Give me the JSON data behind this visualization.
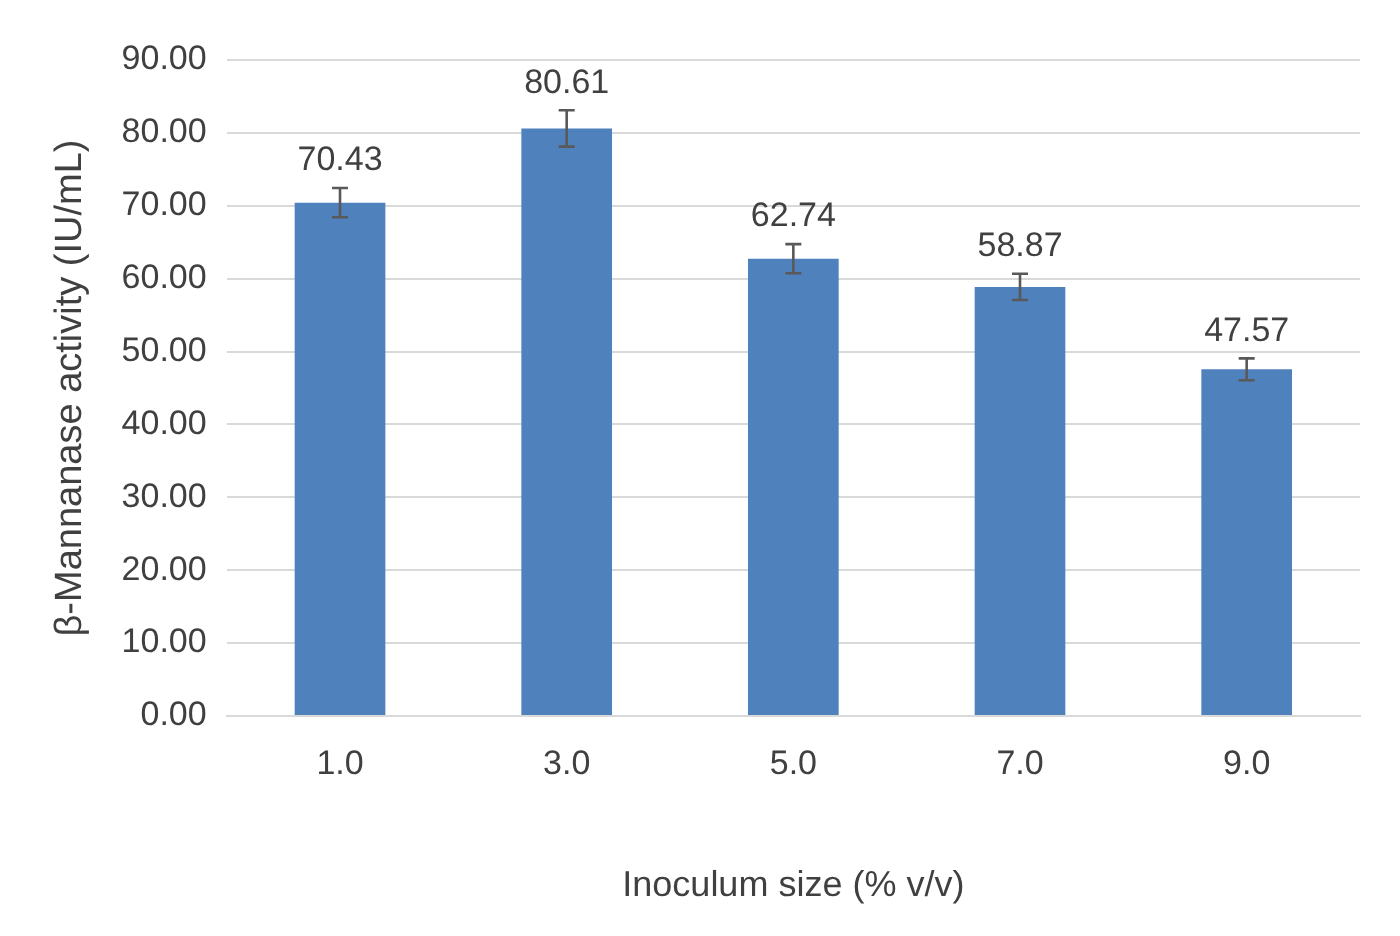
{
  "chart_data": {
    "type": "bar",
    "xlabel": "Inoculum size (% v/v)",
    "ylabel": "β-Mannanase activity (IU/mL)",
    "categories": [
      "1.0",
      "3.0",
      "5.0",
      "7.0",
      "9.0"
    ],
    "values": [
      70.43,
      80.61,
      62.74,
      58.87,
      47.57
    ],
    "errors": [
      2,
      2.5,
      2,
      1.8,
      1.5
    ],
    "color": "#4f81bd",
    "data_labels": true,
    "grid": "y",
    "legend": false,
    "ylim": [
      0,
      90
    ],
    "yticks": [
      {
        "value": 0,
        "label": "0.00"
      },
      {
        "value": 10,
        "label": "10.00"
      },
      {
        "value": 20,
        "label": "20.00"
      },
      {
        "value": 30,
        "label": "30.00"
      },
      {
        "value": 40,
        "label": "40.00"
      },
      {
        "value": 50,
        "label": "50.00"
      },
      {
        "value": 60,
        "label": "60.00"
      },
      {
        "value": 70,
        "label": "70.00"
      },
      {
        "value": 80,
        "label": "80.00"
      },
      {
        "value": 90,
        "label": "90.00"
      }
    ]
  }
}
